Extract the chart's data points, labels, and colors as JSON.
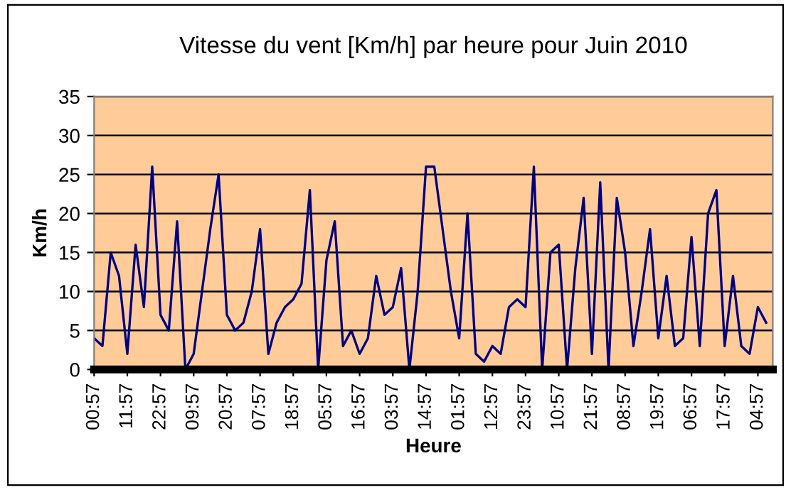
{
  "chart_data": {
    "type": "line",
    "title": "Vitesse du vent [Km/h] par heure pour Juin 2010",
    "xlabel": "Heure",
    "ylabel": "Km/h",
    "categories": [
      "00:57",
      null,
      null,
      null,
      "11:57",
      null,
      null,
      null,
      "22:57",
      null,
      null,
      null,
      "09:57",
      null,
      null,
      null,
      "20:57",
      null,
      null,
      null,
      "07:57",
      null,
      null,
      null,
      "18:57",
      null,
      null,
      null,
      "05:57",
      null,
      null,
      null,
      "16:57",
      null,
      null,
      null,
      "03:57",
      null,
      null,
      null,
      "14:57",
      null,
      null,
      null,
      "01:57",
      null,
      null,
      null,
      "12:57",
      null,
      null,
      null,
      "23:57",
      null,
      null,
      null,
      "10:57",
      null,
      null,
      null,
      "21:57",
      null,
      null,
      null,
      "08:57",
      null,
      null,
      null,
      "19:57",
      null,
      null,
      null,
      "06:57",
      null,
      null,
      null,
      "17:57",
      null,
      null,
      null,
      "04:57",
      null
    ],
    "series": [
      {
        "color": "#000080",
        "values": [
          4,
          3,
          15,
          12,
          2,
          16,
          8,
          26,
          7,
          5,
          19,
          0,
          2,
          10,
          18,
          25,
          7,
          5,
          6,
          10,
          18,
          2,
          6,
          8,
          9,
          11,
          23,
          0,
          14,
          19,
          3,
          5,
          2,
          4,
          12,
          7,
          8,
          13,
          0,
          10,
          26,
          26,
          18,
          10,
          4,
          20,
          2,
          1,
          3,
          2,
          8,
          9,
          8,
          26,
          0,
          15,
          16,
          0,
          13,
          22,
          2,
          24,
          0,
          22,
          15,
          3,
          10,
          18,
          4,
          12,
          3,
          4,
          17,
          3,
          20,
          23,
          3,
          12,
          3,
          2,
          8,
          6
        ]
      }
    ],
    "ylim": [
      0,
      35
    ],
    "yticks": [
      0,
      5,
      10,
      15,
      20,
      25,
      30,
      35
    ],
    "grid": "y",
    "marker": "none",
    "line_style": "solid"
  }
}
